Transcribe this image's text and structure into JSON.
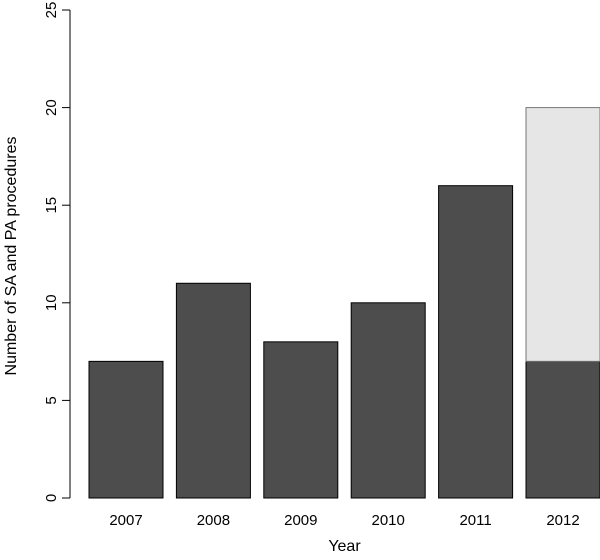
{
  "chart_data": {
    "type": "bar",
    "stacked": true,
    "title": "",
    "xlabel": "Year",
    "ylabel": "Number of SA and PA procedures",
    "categories": [
      "2007",
      "2008",
      "2009",
      "2010",
      "2011",
      "2012"
    ],
    "series": [
      {
        "color": "#4d4d4d",
        "values": [
          7,
          11,
          8,
          10,
          16,
          7
        ]
      },
      {
        "color": "#e6e6e6",
        "values": [
          0,
          0,
          0,
          0,
          0,
          13
        ]
      }
    ],
    "ylim": [
      0,
      25
    ],
    "yticks": [
      "0",
      "5",
      "10",
      "15",
      "20",
      "25"
    ],
    "grid": false,
    "legend": "none"
  }
}
